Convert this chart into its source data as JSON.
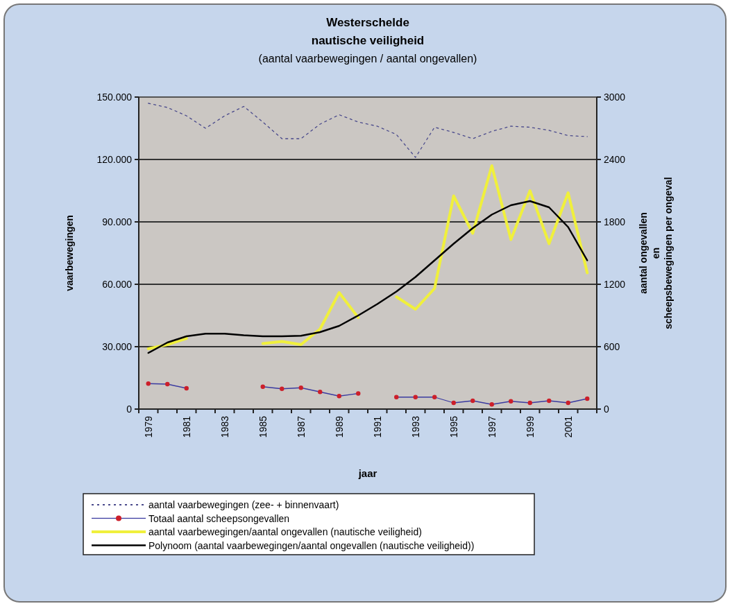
{
  "chart_data": {
    "type": "line",
    "title": "Westerschelde\nnautische veiligheid",
    "subtitle": "(aantal vaarbewegingen / aantal ongevallen)",
    "xlabel": "jaar",
    "ylabel": "vaarbewegingen",
    "y2label": "aantal ongevallen\nen\nscheepsbewegingen per ongeval",
    "categories": [
      "1979",
      null,
      "1981",
      null,
      "1983",
      null,
      "1985",
      null,
      "1987",
      null,
      "1989",
      null,
      "1991",
      null,
      "1993",
      null,
      "1995",
      null,
      "1997",
      null,
      "1999",
      null,
      "2001",
      null
    ],
    "series": [
      {
        "name": "aantal vaarbewegingen (zee- + binnenvaart)",
        "color": "#4a4a8c",
        "line_style": "dotted",
        "marker": "none",
        "values": [
          147000,
          145000,
          141000,
          135000,
          141000,
          145500,
          138000,
          130000,
          130000,
          137000,
          141500,
          138000,
          136000,
          132000,
          121000,
          135500,
          133000,
          130000,
          133500,
          136000,
          135500,
          134000,
          131500,
          131000
        ]
      },
      {
        "name": "Totaal aantal scheepsongevallen",
        "color": "#cc1f2a",
        "line_style": "solid",
        "marker": "circle",
        "axis": "y2",
        "values": [
          245,
          240,
          200,
          null,
          null,
          null,
          215,
          195,
          205,
          165,
          125,
          150,
          null,
          115,
          115,
          115,
          60,
          80,
          45,
          75,
          60,
          80,
          60,
          100
        ]
      },
      {
        "name": "aantal vaarbewegingen/aantal ongevallen (nautische veiligheid)",
        "color": "#f0f03c",
        "line_style": "solid",
        "marker": "none",
        "axis": "y2",
        "values": [
          580,
          620,
          680,
          null,
          null,
          null,
          630,
          650,
          620,
          770,
          1120,
          880,
          null,
          1080,
          960,
          1160,
          2050,
          1690,
          2340,
          1630,
          2100,
          1590,
          2080,
          1310
        ]
      },
      {
        "name": "Polynoom (aantal vaarbewegingen/aantal ongevallen (nautische veiligheid))",
        "color": "#000000",
        "line_style": "solid",
        "marker": "none",
        "axis": "y2",
        "values": [
          540,
          640,
          700,
          725,
          725,
          710,
          700,
          700,
          705,
          740,
          800,
          900,
          1010,
          1130,
          1270,
          1430,
          1590,
          1740,
          1870,
          1960,
          2000,
          1940,
          1750,
          1430
        ]
      }
    ],
    "ylim": [
      0,
      150000
    ],
    "yticks": [
      {
        "value": 0,
        "label": "0"
      },
      {
        "value": 30000,
        "label": "30.000"
      },
      {
        "value": 60000,
        "label": "60.000"
      },
      {
        "value": 90000,
        "label": "90.000"
      },
      {
        "value": 120000,
        "label": "120.000"
      },
      {
        "value": 150000,
        "label": "150.000"
      }
    ],
    "y2lim": [
      0,
      3000
    ],
    "y2ticks": [
      0,
      600,
      1200,
      1800,
      2400,
      3000
    ],
    "grid": "y",
    "legend": "bottom"
  }
}
